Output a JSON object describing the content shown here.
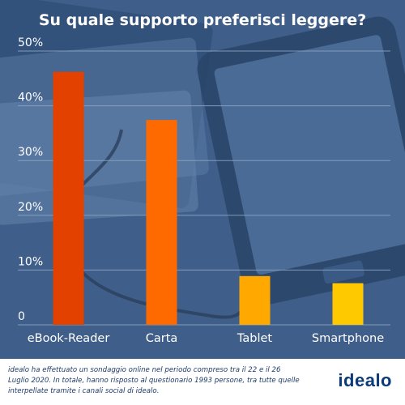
{
  "chart_data": {
    "type": "bar",
    "title": "Su quale supporto preferisci leggere?",
    "categories": [
      "eBook-Reader",
      "Carta",
      "Tablet",
      "Smartphone"
    ],
    "values": [
      46.2,
      37.4,
      8.9,
      7.6
    ],
    "y_ticks": [
      "0",
      "10%",
      "20%",
      "30%",
      "40%",
      "50%"
    ],
    "ylim": [
      0,
      50
    ],
    "grid": true,
    "colors": [
      "#e24100",
      "#ff6a00",
      "#ffa800",
      "#ffc900"
    ]
  },
  "footer": {
    "note": "idealo ha effettuato un sondaggio online nel periodo compreso tra il 22 e il 26 Luglio 2020. In totale, hanno risposto al questionario 1993 persone, tra tutte quelle interpellate tramite i canali social di idealo.",
    "logo": "idealo"
  },
  "colors": {
    "background": "#3f5f8a",
    "grid": "#8aa2c2",
    "text": "#ffffff",
    "logo": "#0b3b78"
  }
}
